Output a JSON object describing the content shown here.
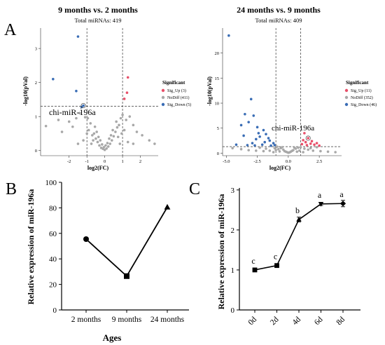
{
  "chart_data": [
    {
      "panel": "A",
      "type": "scatter",
      "title": "9 months vs. 2 months",
      "subtitle": "Total miRNAs: 419",
      "xlabel": "log2(FC)",
      "ylabel": "-log10(pVal)",
      "xticks": [
        -2,
        -1,
        0,
        1,
        2
      ],
      "yticks": [
        0,
        1,
        2,
        3
      ],
      "xlim": [
        -3.6,
        3.0
      ],
      "ylim": [
        -0.15,
        3.6
      ],
      "fc_threshold": [
        -1,
        1
      ],
      "p_threshold": 1.3,
      "legend_title": "Significant",
      "legend": [
        {
          "label": "Sig_Up (3)",
          "color": "#e8506a"
        },
        {
          "label": "NoDiff (411)",
          "color": "#a8a8a8"
        },
        {
          "label": "Sig_Down (5)",
          "color": "#3a6db5"
        }
      ],
      "annotation": {
        "text": "chi-miR-196a",
        "x": -1.2,
        "y": 1.32
      },
      "series": [
        {
          "color_key": 2,
          "points": [
            [
              -1.5,
              3.35
            ],
            [
              -2.9,
              2.1
            ],
            [
              -1.6,
              1.75
            ],
            [
              -1.2,
              1.32
            ],
            [
              -1.3,
              1.28
            ]
          ]
        },
        {
          "color_key": 0,
          "points": [
            [
              1.3,
              2.15
            ],
            [
              1.25,
              1.7
            ],
            [
              1.1,
              1.52
            ]
          ]
        },
        {
          "color_key": 1,
          "points": [
            [
              -3.3,
              0.72
            ],
            [
              -2.4,
              0.55
            ],
            [
              -2.6,
              0.9
            ],
            [
              -2.0,
              0.85
            ],
            [
              -1.8,
              0.7
            ],
            [
              -1.6,
              0.95
            ],
            [
              -1.4,
              1.1
            ],
            [
              -1.1,
              0.98
            ],
            [
              -0.9,
              0.6
            ],
            [
              -0.8,
              0.8
            ],
            [
              -0.7,
              0.45
            ],
            [
              -0.6,
              0.5
            ],
            [
              -0.5,
              0.35
            ],
            [
              -0.4,
              0.25
            ],
            [
              -0.3,
              0.15
            ],
            [
              -0.2,
              0.08
            ],
            [
              -0.1,
              0.05
            ],
            [
              0.0,
              0.02
            ],
            [
              0.1,
              0.06
            ],
            [
              0.2,
              0.12
            ],
            [
              0.3,
              0.2
            ],
            [
              0.4,
              0.3
            ],
            [
              0.5,
              0.42
            ],
            [
              0.6,
              0.55
            ],
            [
              0.7,
              0.68
            ],
            [
              0.8,
              0.75
            ],
            [
              0.9,
              0.95
            ],
            [
              1.0,
              1.05
            ],
            [
              1.2,
              0.9
            ],
            [
              1.4,
              1.0
            ],
            [
              1.6,
              0.75
            ],
            [
              1.8,
              0.55
            ],
            [
              2.1,
              0.45
            ],
            [
              2.5,
              0.3
            ],
            [
              2.8,
              0.2
            ],
            [
              -0.25,
              0.3
            ],
            [
              0.25,
              0.35
            ],
            [
              -0.55,
              0.7
            ],
            [
              0.65,
              0.85
            ],
            [
              0.45,
              0.6
            ],
            [
              -0.45,
              0.55
            ],
            [
              -0.15,
              0.18
            ],
            [
              0.15,
              0.22
            ],
            [
              -0.35,
              0.4
            ],
            [
              0.35,
              0.45
            ],
            [
              -0.05,
              0.1
            ],
            [
              0.05,
              0.15
            ],
            [
              -0.65,
              0.3
            ],
            [
              0.75,
              0.4
            ],
            [
              -1.0,
              0.5
            ],
            [
              1.1,
              0.6
            ],
            [
              -1.2,
              0.3
            ],
            [
              1.3,
              0.25
            ],
            [
              -0.75,
              0.2
            ],
            [
              0.85,
              0.2
            ],
            [
              -1.5,
              0.2
            ],
            [
              1.6,
              0.2
            ],
            [
              -0.95,
              0.95
            ],
            [
              0.95,
              0.5
            ]
          ]
        }
      ]
    },
    {
      "panel": "A",
      "type": "scatter",
      "title": "24 months vs. 9 months",
      "subtitle": "Total miRNAs: 409",
      "xlabel": "log2(FC)",
      "ylabel": "-log10(pVal)",
      "xticks": [
        -5.0,
        -2.5,
        0.0,
        2.5
      ],
      "xtick_labels": [
        "-5.0",
        "-2.5",
        "0.0",
        "2.5"
      ],
      "yticks": [
        0,
        5,
        10,
        15,
        20
      ],
      "xlim": [
        -5.3,
        4.3
      ],
      "ylim": [
        -0.5,
        25.0
      ],
      "fc_threshold": [
        -1,
        1
      ],
      "p_threshold": 1.3,
      "legend_title": "Significant",
      "legend": [
        {
          "label": "Sig_Up (11)",
          "color": "#e8506a"
        },
        {
          "label": "NoDiff (352)",
          "color": "#a8a8a8"
        },
        {
          "label": "Sig_Down (46)",
          "color": "#3a6db5"
        }
      ],
      "annotation": {
        "text": "chi-miR-196a",
        "x": 1.6,
        "y": 3.0
      },
      "series": [
        {
          "color_key": 2,
          "points": [
            [
              -4.8,
              23.5
            ],
            [
              -3.0,
              10.8
            ],
            [
              -3.5,
              7.8
            ],
            [
              -3.2,
              6.2
            ],
            [
              -2.8,
              7.5
            ],
            [
              -3.8,
              5.6
            ],
            [
              -2.5,
              5.2
            ],
            [
              -2.0,
              4.6
            ],
            [
              -1.8,
              3.8
            ],
            [
              -2.3,
              3.3
            ],
            [
              -2.6,
              2.8
            ],
            [
              -1.5,
              2.5
            ],
            [
              -1.2,
              2.0
            ],
            [
              -1.9,
              2.2
            ],
            [
              -2.9,
              2.0
            ],
            [
              -3.3,
              1.6
            ],
            [
              -1.4,
              1.5
            ],
            [
              -2.1,
              1.7
            ],
            [
              -1.6,
              3.0
            ],
            [
              -2.4,
              4.0
            ],
            [
              -3.6,
              3.5
            ],
            [
              -4.2,
              1.7
            ],
            [
              -1.1,
              1.6
            ],
            [
              -2.7,
              1.55
            ]
          ]
        },
        {
          "color_key": 0,
          "points": [
            [
              1.6,
              3.0
            ],
            [
              1.2,
              2.6
            ],
            [
              1.4,
              2.2
            ],
            [
              1.8,
              1.9
            ],
            [
              2.1,
              1.7
            ],
            [
              1.1,
              1.8
            ],
            [
              1.3,
              4.0
            ],
            [
              2.3,
              2.0
            ],
            [
              1.5,
              1.6
            ],
            [
              1.9,
              2.4
            ],
            [
              2.5,
              1.5
            ]
          ]
        },
        {
          "color_key": 1,
          "points": [
            [
              -4.5,
              1.0
            ],
            [
              -3.8,
              0.8
            ],
            [
              -3.2,
              0.6
            ],
            [
              -2.6,
              0.5
            ],
            [
              -2.0,
              0.4
            ],
            [
              -1.5,
              0.5
            ],
            [
              -1.0,
              0.6
            ],
            [
              -0.8,
              0.8
            ],
            [
              -0.6,
              1.0
            ],
            [
              -0.4,
              0.7
            ],
            [
              -0.2,
              0.3
            ],
            [
              0.0,
              0.1
            ],
            [
              0.2,
              0.3
            ],
            [
              0.4,
              0.6
            ],
            [
              0.6,
              0.9
            ],
            [
              0.8,
              1.1
            ],
            [
              1.0,
              1.2
            ],
            [
              1.3,
              0.9
            ],
            [
              1.6,
              0.7
            ],
            [
              2.0,
              0.5
            ],
            [
              2.6,
              0.4
            ],
            [
              3.2,
              0.3
            ],
            [
              3.8,
              0.2
            ],
            [
              -0.5,
              1.2
            ],
            [
              0.5,
              1.1
            ],
            [
              -0.9,
              1.3
            ],
            [
              0.9,
              0.5
            ],
            [
              -1.2,
              0.2
            ],
            [
              1.2,
              0.2
            ],
            [
              -0.3,
              0.4
            ],
            [
              0.3,
              0.45
            ],
            [
              -0.7,
              0.35
            ],
            [
              0.7,
              0.3
            ],
            [
              -1.8,
              0.9
            ],
            [
              1.8,
              1.0
            ],
            [
              -2.3,
              1.1
            ],
            [
              2.3,
              1.2
            ],
            [
              -0.1,
              0.2
            ],
            [
              0.1,
              0.15
            ],
            [
              -1.1,
              1.0
            ]
          ]
        }
      ]
    },
    {
      "panel": "B",
      "type": "line",
      "categories": [
        "2 months",
        "9 months",
        "24 months"
      ],
      "values": [
        55.5,
        26.5,
        80.5
      ],
      "markers": [
        "circle",
        "square",
        "triangle"
      ],
      "xlabel": "Ages",
      "ylabel": "Relative expression of miR-196a",
      "ylim": [
        0,
        100
      ],
      "yticks": [
        0,
        20,
        40,
        60,
        80,
        100
      ]
    },
    {
      "panel": "C",
      "type": "line",
      "categories": [
        "0d",
        "2d",
        "4d",
        "6d",
        "8d"
      ],
      "values": [
        1.0,
        1.11,
        2.26,
        2.65,
        2.66
      ],
      "errors": [
        0.03,
        0.03,
        0.06,
        0.04,
        0.08
      ],
      "markers": [
        "square",
        "square",
        "triangle",
        "triangle-down",
        "diamond"
      ],
      "letters": [
        "c",
        "c",
        "b",
        "a",
        "a"
      ],
      "xlabel": "",
      "ylabel": "Relative expression of miR-196a",
      "ylim": [
        0,
        3.05
      ],
      "yticks": [
        0,
        1,
        2,
        3
      ]
    }
  ],
  "panel_labels": [
    "A",
    "B",
    "C"
  ]
}
